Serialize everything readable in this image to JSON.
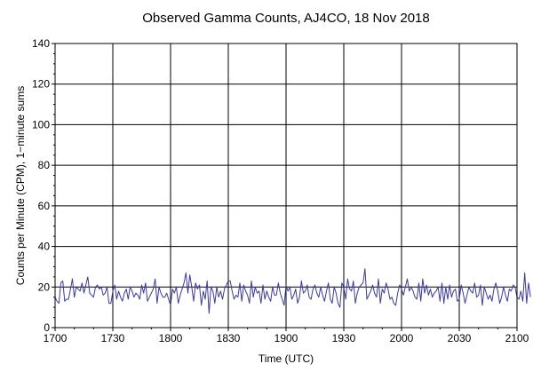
{
  "chart_data": {
    "type": "line",
    "title": "Observed Gamma Counts, AJ4CO, 18 Nov 2018",
    "xlabel": "Time (UTC)",
    "ylabel": "Counts per Minute (CPM), 1−minute sums",
    "x_tick_labels": [
      "1700",
      "1730",
      "1800",
      "1830",
      "1900",
      "1930",
      "2000",
      "2030",
      "2100"
    ],
    "x_tick_minutes": [
      0,
      30,
      60,
      90,
      120,
      150,
      180,
      210,
      240
    ],
    "y_tick_labels": [
      "0",
      "20",
      "40",
      "60",
      "80",
      "100",
      "120",
      "140"
    ],
    "y_ticks": [
      0,
      20,
      40,
      60,
      80,
      100,
      120,
      140
    ],
    "xlim": [
      "1700",
      "2100"
    ],
    "ylim": [
      0,
      140
    ],
    "grid": true,
    "series": [
      {
        "color": "#3a3aa0",
        "x_start": "1700",
        "x_step_minutes": 1,
        "values": [
          15,
          13,
          12,
          22,
          23,
          13,
          14,
          14,
          19,
          24,
          15,
          20,
          19,
          18,
          22,
          17,
          21,
          25,
          17,
          16,
          15,
          20,
          21,
          19,
          20,
          16,
          17,
          20,
          12,
          12,
          18,
          21,
          14,
          18,
          15,
          13,
          17,
          19,
          14,
          20,
          18,
          15,
          17,
          16,
          14,
          21,
          17,
          22,
          13,
          15,
          17,
          19,
          24,
          12,
          20,
          17,
          15,
          15,
          17,
          14,
          11,
          19,
          17,
          20,
          12,
          16,
          19,
          22,
          27,
          17,
          26,
          20,
          13,
          22,
          19,
          21,
          11,
          18,
          14,
          23,
          7,
          20,
          18,
          12,
          20,
          15,
          18,
          14,
          19,
          21,
          23,
          23,
          18,
          14,
          16,
          15,
          22,
          13,
          21,
          18,
          16,
          12,
          23,
          15,
          20,
          17,
          18,
          12,
          21,
          14,
          18,
          15,
          13,
          20,
          16,
          16,
          22,
          17,
          14,
          11,
          21,
          18,
          20,
          14,
          16,
          19,
          12,
          15,
          23,
          17,
          18,
          21,
          15,
          14,
          19,
          21,
          17,
          15,
          20,
          16,
          13,
          18,
          22,
          14,
          12,
          20,
          17,
          12,
          10,
          22,
          20,
          14,
          24,
          19,
          18,
          23,
          12,
          17,
          20,
          21,
          22,
          29,
          14,
          16,
          18,
          21,
          17,
          15,
          24,
          12,
          19,
          17,
          22,
          19,
          14,
          15,
          12,
          11,
          17,
          21,
          19,
          16,
          20,
          24,
          18,
          20,
          18,
          15,
          14,
          22,
          13,
          24,
          17,
          21,
          16,
          19,
          15,
          17,
          18,
          20,
          13,
          22,
          12,
          20,
          14,
          21,
          15,
          18,
          19,
          13,
          14,
          21,
          17,
          12,
          16,
          20,
          18,
          17,
          22,
          15,
          16,
          21,
          11,
          20,
          17,
          14,
          16,
          13,
          19,
          22,
          18,
          12,
          15,
          20,
          16,
          13,
          19,
          18,
          21,
          20,
          15,
          14,
          18,
          13,
          27,
          12,
          22,
          15
        ]
      }
    ]
  }
}
